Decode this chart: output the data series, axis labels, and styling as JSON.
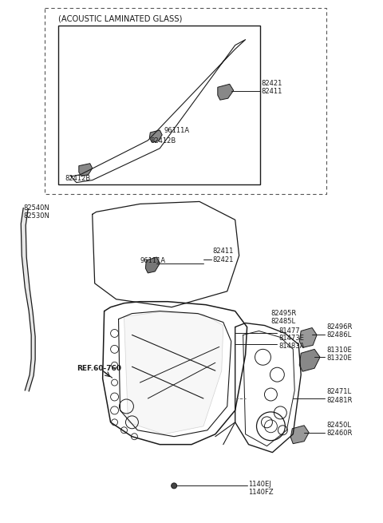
{
  "bg_color": "#ffffff",
  "line_color": "#1a1a1a",
  "fig_width": 4.8,
  "fig_height": 6.55,
  "dpi": 100,
  "labels": {
    "acoustic_title": "(ACOUSTIC LAMINATED GLASS)",
    "82421_inner": "82421\n82411",
    "96111A_inner": "96111A",
    "82412B_mid": "82412B",
    "82412B_low": "82412B",
    "82540N": "82540N\n82530N",
    "82411": "82411\n82421",
    "96111A_main": "96111A",
    "ref": "REF.60-760",
    "81477": "81477",
    "81473E": "81473E\n81483A",
    "82495R": "82495R\n82485L",
    "82496R": "82496R\n82486L",
    "81310E": "81310E\n81320E",
    "82471L": "82471L\n82481R",
    "82450L": "82450L\n82460R",
    "1140EJ": "1140EJ\n1140FZ"
  }
}
